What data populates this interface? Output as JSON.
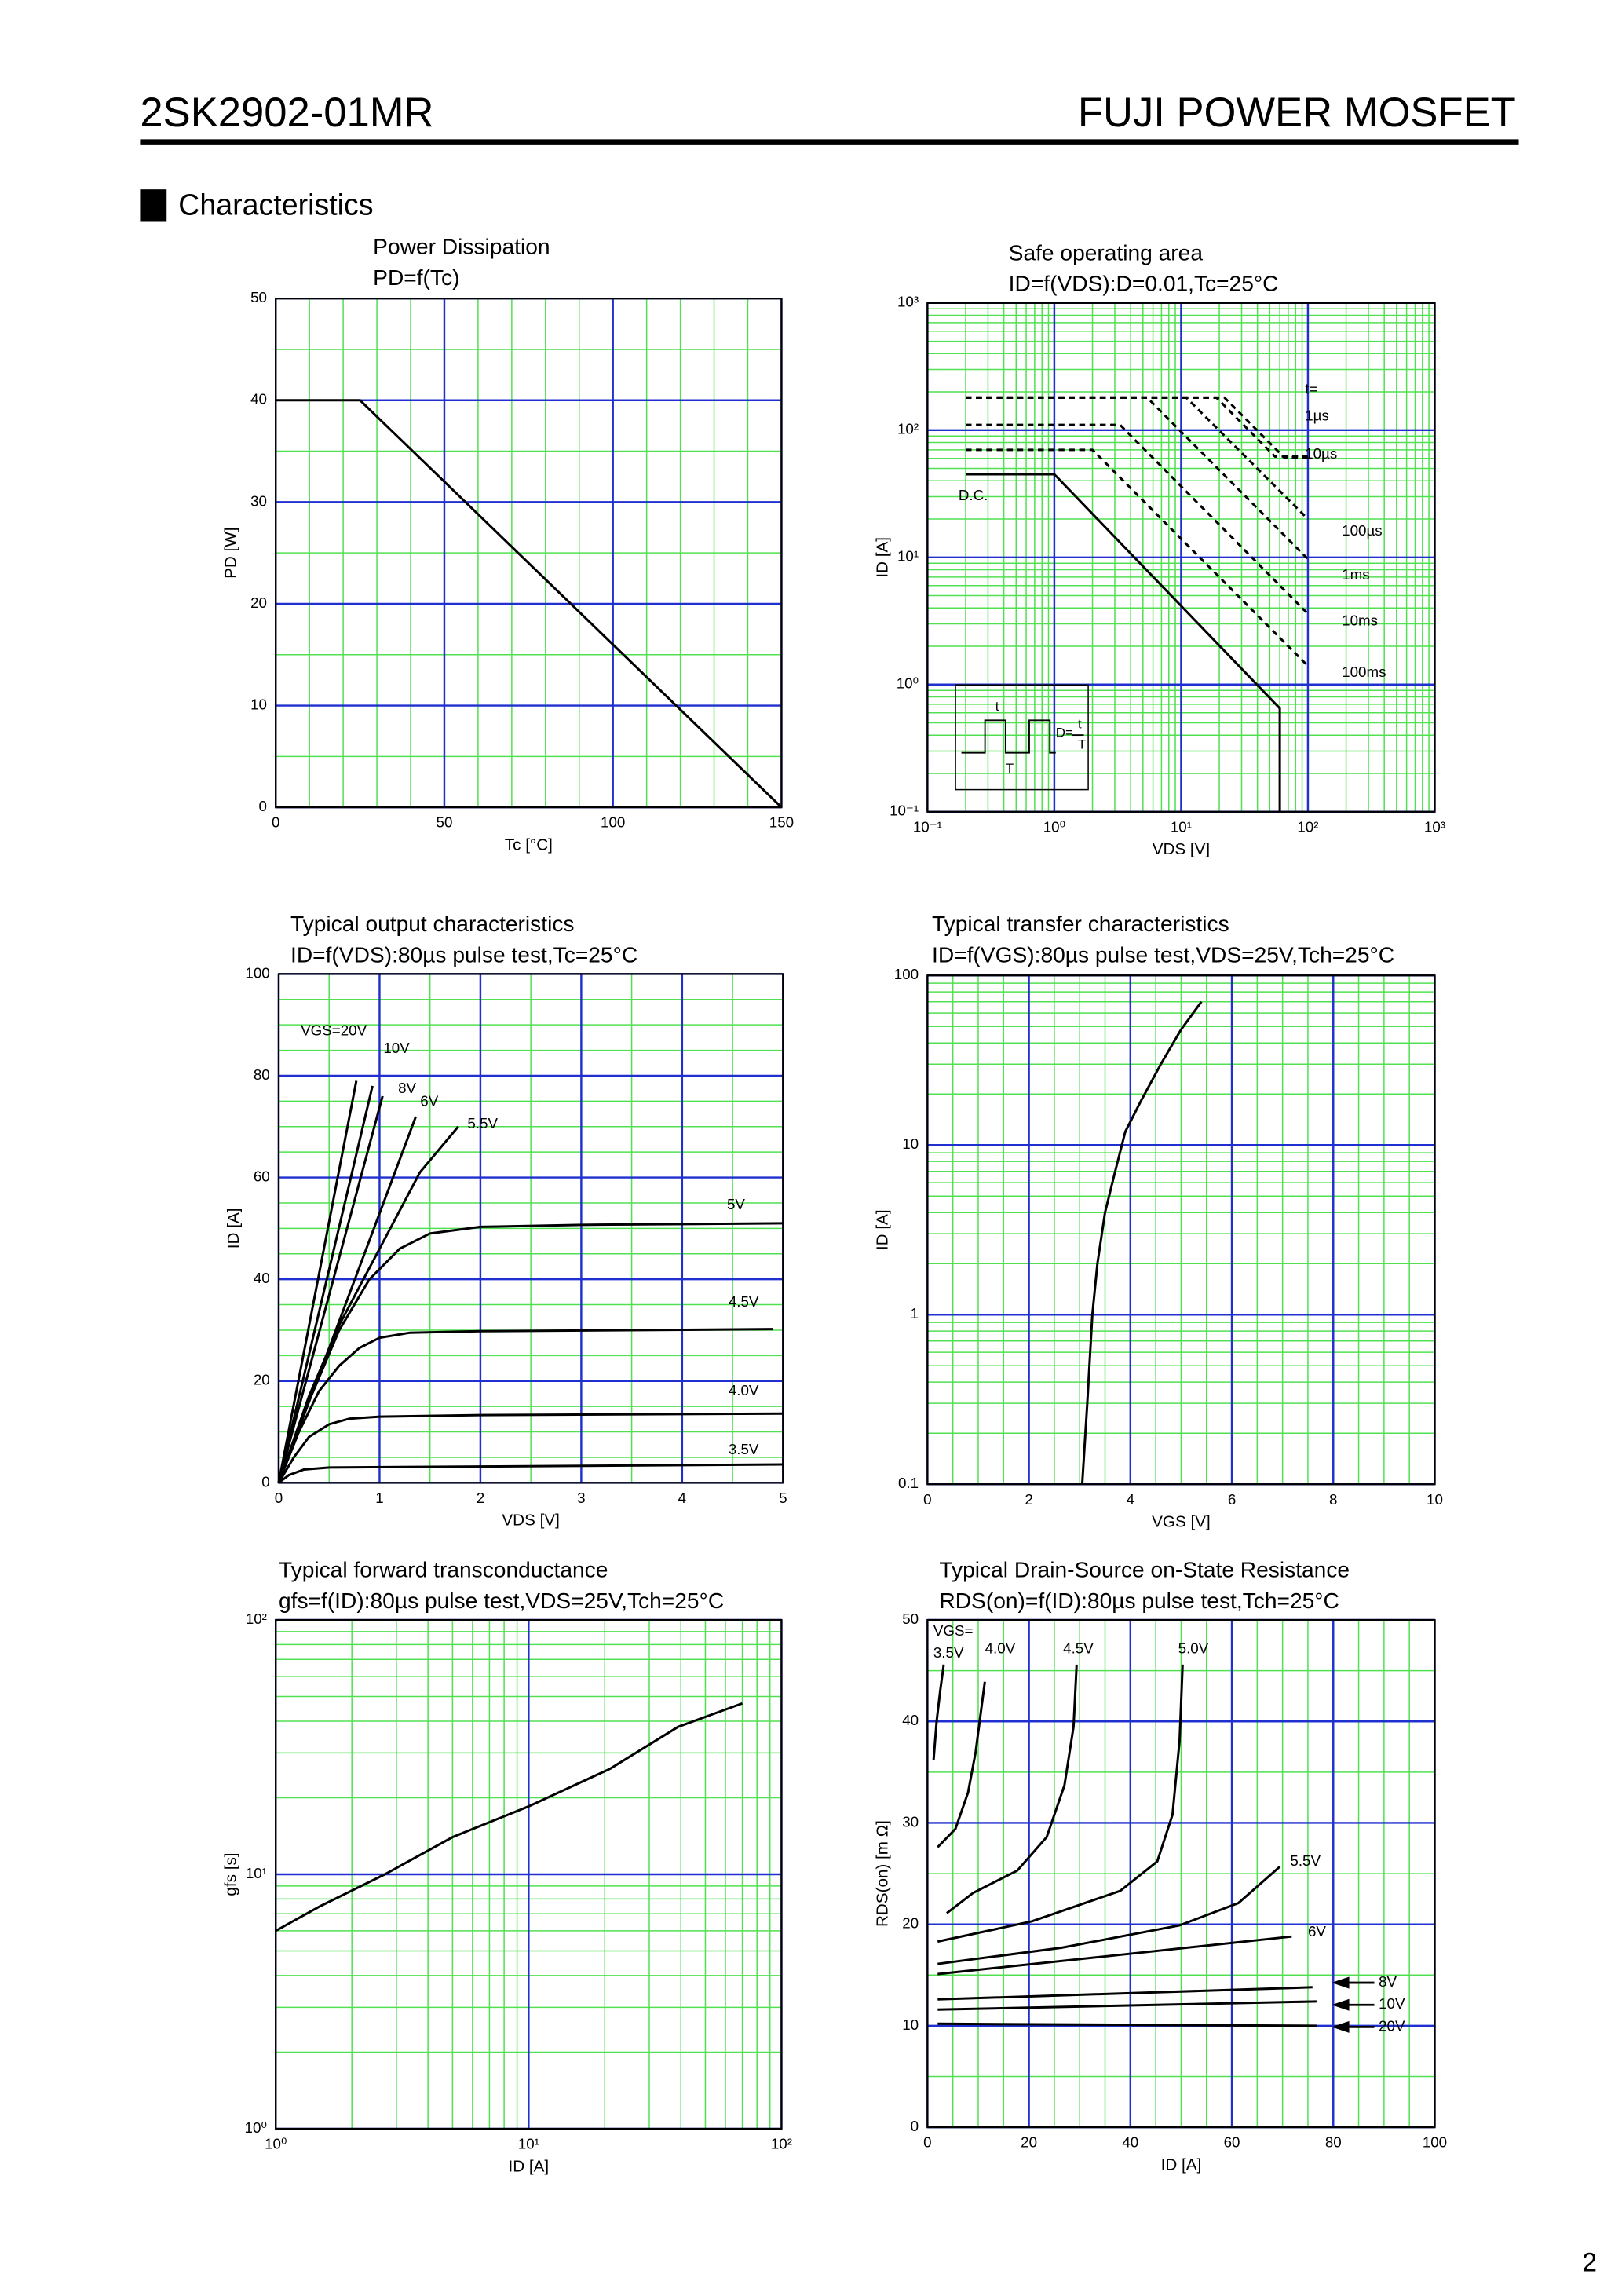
{
  "header": {
    "part": "2SK2902-01MR",
    "brand": "FUJI POWER MOSFET"
  },
  "section": "Characteristics",
  "page_number": "2",
  "chart_data": [
    {
      "type": "line",
      "title": "Power Dissipation",
      "subtitle": "PD=f(Tc)",
      "xlabel": "Tc [°C]",
      "ylabel": "PD [W]",
      "xlim": [
        0,
        150
      ],
      "ylim": [
        0,
        50
      ],
      "xticks": [
        0,
        50,
        100,
        150
      ],
      "yticks": [
        0,
        10,
        20,
        30,
        40,
        50
      ],
      "grid": true,
      "grid_color": "#2030d0",
      "minor_grid_color": "#50e050",
      "line_color": "#000000",
      "series": [
        {
          "x": [
            0,
            25,
            150
          ],
          "values": [
            40,
            40,
            0
          ],
          "style": "solid"
        }
      ]
    },
    {
      "type": "line",
      "title": "Safe operating area",
      "subtitle": "ID=f(VDS):D=0.01,Tc=25°C",
      "xlabel": "VDS [V]",
      "ylabel": "ID [A]",
      "xscale": "log",
      "yscale": "log",
      "xlim": [
        0.1,
        1000
      ],
      "ylim": [
        0.1,
        1000
      ],
      "xticks": [
        {
          "value": 0.1,
          "label": "10⁻¹"
        },
        {
          "value": 1,
          "label": "10⁰"
        },
        {
          "value": 10,
          "label": "10¹"
        },
        {
          "value": 100,
          "label": "10²"
        },
        {
          "value": 1000,
          "label": "10³"
        }
      ],
      "yticks": [
        {
          "value": 0.1,
          "label": "10⁻¹"
        },
        {
          "value": 1,
          "label": "10⁰"
        },
        {
          "value": 10,
          "label": "10¹"
        },
        {
          "value": 100,
          "label": "10²"
        },
        {
          "value": 1000,
          "label": "10³"
        }
      ],
      "grid": true,
      "grid_color": "#2030d0",
      "minor_grid_color": "#50e050",
      "line_color": "#000000",
      "series": [
        {
          "name": "D.C.",
          "x": [
            0.2,
            1,
            60,
            60
          ],
          "values": [
            45,
            45,
            0.65,
            0.1
          ],
          "style": "solid"
        },
        {
          "name": "100ms",
          "x": [
            0.2,
            2,
            100
          ],
          "values": [
            70,
            70,
            1.4
          ],
          "style": "dashed"
        },
        {
          "name": "10ms",
          "x": [
            0.2,
            3.3,
            100
          ],
          "values": [
            110,
            110,
            3.6
          ],
          "style": "dashed"
        },
        {
          "name": "1ms",
          "x": [
            0.2,
            5.4,
            100
          ],
          "values": [
            180,
            180,
            9.7
          ],
          "style": "dashed"
        },
        {
          "name": "100µs",
          "x": [
            0.2,
            11,
            100
          ],
          "values": [
            180,
            180,
            20
          ],
          "style": "dashed"
        },
        {
          "name": "10µs",
          "x": [
            0.2,
            19,
            55,
            100
          ],
          "values": [
            180,
            180,
            62,
            62
          ],
          "style": "dashed"
        },
        {
          "name": "1µs",
          "x": [
            0.2,
            22,
            65,
            100
          ],
          "values": [
            180,
            180,
            61,
            61
          ],
          "style": "dashed"
        }
      ],
      "annotations": [
        "t="
      ],
      "inset_labels": [
        "t",
        "D=",
        "t",
        "T",
        "T"
      ]
    },
    {
      "type": "line",
      "title": "Typical output characteristics",
      "subtitle": "ID=f(VDS):80µs pulse test,Tc=25°C",
      "xlabel": "VDS [V]",
      "ylabel": "ID [A]",
      "xlim": [
        0,
        5
      ],
      "ylim": [
        0,
        100
      ],
      "xticks": [
        0,
        1,
        2,
        3,
        4,
        5
      ],
      "yticks": [
        0,
        20,
        40,
        60,
        80,
        100
      ],
      "grid": true,
      "grid_color": "#2030d0",
      "minor_grid_color": "#50e050",
      "line_color": "#000000",
      "series": [
        {
          "name": "VGS=20V",
          "x": [
            0,
            0.77
          ],
          "values": [
            0,
            79
          ],
          "style": "solid"
        },
        {
          "name": "10V",
          "x": [
            0,
            0.93
          ],
          "values": [
            0,
            78
          ],
          "style": "solid"
        },
        {
          "name": "8V",
          "x": [
            0,
            1.03
          ],
          "values": [
            0,
            76
          ],
          "style": "solid"
        },
        {
          "name": "6V",
          "x": [
            0,
            1.36
          ],
          "values": [
            0,
            72
          ],
          "style": "solid"
        },
        {
          "name": "5.5V",
          "x": [
            0,
            0.3,
            0.6,
            1,
            1.4,
            1.78
          ],
          "values": [
            0,
            17,
            31,
            46,
            61,
            70
          ],
          "style": "solid"
        },
        {
          "name": "5V",
          "x": [
            0,
            0.3,
            0.6,
            0.9,
            1.2,
            1.5,
            2,
            3,
            5
          ],
          "values": [
            0,
            16,
            30,
            40,
            46,
            49,
            50.3,
            50.7,
            51
          ],
          "style": "solid"
        },
        {
          "name": "4.5V",
          "x": [
            0,
            0.2,
            0.4,
            0.6,
            0.8,
            1,
            1.3,
            2,
            4.9
          ],
          "values": [
            0,
            10,
            18,
            23,
            26.5,
            28.5,
            29.5,
            29.8,
            30.2
          ],
          "style": "solid"
        },
        {
          "name": "4.0V",
          "x": [
            0,
            0.15,
            0.3,
            0.5,
            0.7,
            1,
            2,
            5
          ],
          "values": [
            0,
            5,
            9,
            11.5,
            12.6,
            13,
            13.3,
            13.6
          ],
          "style": "solid"
        },
        {
          "name": "3.5V",
          "x": [
            0,
            0.1,
            0.25,
            0.5,
            2,
            5
          ],
          "values": [
            0,
            1.5,
            2.6,
            3,
            3.2,
            3.6
          ],
          "style": "solid"
        }
      ]
    },
    {
      "type": "line",
      "title": "Typical transfer characteristics",
      "subtitle": "ID=f(VGS):80µs pulse test,VDS=25V,Tch=25°C",
      "xlabel": "VGS [V]",
      "ylabel": "ID [A]",
      "yscale": "log",
      "xlim": [
        0,
        10
      ],
      "ylim": [
        0.1,
        100
      ],
      "xticks": [
        0,
        2,
        4,
        6,
        8,
        10
      ],
      "yticks": [
        0.1,
        1,
        10,
        100
      ],
      "grid": true,
      "grid_color": "#2030d0",
      "minor_grid_color": "#50e050",
      "line_color": "#000000",
      "series": [
        {
          "x": [
            3.05,
            3.15,
            3.25,
            3.35,
            3.5,
            3.7,
            3.9,
            4.2,
            4.6,
            5.0,
            5.4
          ],
          "values": [
            0.1,
            0.3,
            1,
            2,
            4,
            7,
            12,
            18,
            30,
            48,
            70
          ],
          "style": "solid"
        }
      ]
    },
    {
      "type": "line",
      "title": "Typical forward transconductance",
      "subtitle": "gfs=f(ID):80µs pulse test,VDS=25V,Tch=25°C",
      "xlabel": "ID [A]",
      "ylabel": "gfs [s]",
      "xscale": "log",
      "yscale": "log",
      "xlim": [
        1,
        100
      ],
      "ylim": [
        1,
        100
      ],
      "xticks": [
        {
          "value": 1,
          "label": "10⁰"
        },
        {
          "value": 10,
          "label": "10¹"
        },
        {
          "value": 100,
          "label": "10²"
        }
      ],
      "yticks": [
        {
          "value": 1,
          "label": "10⁰"
        },
        {
          "value": 10,
          "label": "10¹"
        },
        {
          "value": 100,
          "label": "10²"
        }
      ],
      "grid": true,
      "grid_color": "#2030d0",
      "minor_grid_color": "#50e050",
      "line_color": "#000000",
      "series": [
        {
          "x": [
            1,
            1.5,
            2.7,
            5,
            10,
            21,
            39,
            70
          ],
          "values": [
            6,
            7.5,
            10,
            14,
            18.5,
            26,
            38,
            47
          ],
          "style": "solid"
        }
      ]
    },
    {
      "type": "line",
      "title": "Typical Drain-Source on-State Resistance",
      "subtitle": "RDS(on)=f(ID):80µs pulse test,Tch=25°C",
      "xlabel": "ID [A]",
      "ylabel": "RDS(on) [m Ω]",
      "xlim": [
        0,
        100
      ],
      "ylim": [
        0,
        50
      ],
      "xticks": [
        0,
        20,
        40,
        60,
        80,
        100
      ],
      "yticks": [
        0,
        10,
        20,
        30,
        40,
        50
      ],
      "grid": true,
      "grid_color": "#2030d0",
      "minor_grid_color": "#50e050",
      "line_color": "#000000",
      "series": [
        {
          "name": "3.5V",
          "x": [
            1.2,
            1.8,
            2.5,
            3.2
          ],
          "values": [
            36.2,
            40,
            43,
            45.6
          ],
          "style": "solid"
        },
        {
          "name": "4.0V",
          "x": [
            2,
            5.5,
            8,
            9.5,
            11.3
          ],
          "values": [
            27.6,
            29.4,
            33,
            37,
            43.9
          ],
          "style": "solid"
        },
        {
          "name": "4.5V",
          "x": [
            3.8,
            9,
            17.7,
            23.5,
            27,
            28.8,
            29.4
          ],
          "values": [
            21.1,
            23.1,
            25.3,
            28.6,
            33.7,
            39.5,
            45.6
          ],
          "style": "solid"
        },
        {
          "name": "5.0V",
          "x": [
            2,
            20.6,
            38,
            45.3,
            48.3,
            49.7,
            50.3
          ],
          "values": [
            18.3,
            20.3,
            23.3,
            26.2,
            30.8,
            38.1,
            45.6
          ],
          "style": "solid"
        },
        {
          "name": "5.5V",
          "x": [
            2,
            26.5,
            49.7,
            61.3,
            69.5
          ],
          "values": [
            16.1,
            17.7,
            19.9,
            22.1,
            25.7
          ],
          "style": "solid"
        },
        {
          "name": "6V",
          "x": [
            2,
            38,
            71.8
          ],
          "values": [
            15.1,
            17,
            18.8
          ],
          "style": "solid"
        },
        {
          "name": "8V",
          "x": [
            2,
            75.9
          ],
          "values": [
            12.6,
            13.8
          ],
          "style": "solid"
        },
        {
          "name": "10V",
          "x": [
            2,
            76.7
          ],
          "values": [
            11.6,
            12.4
          ],
          "style": "solid"
        },
        {
          "name": "20V",
          "x": [
            2,
            76.7
          ],
          "values": [
            10.2,
            10
          ],
          "style": "solid"
        }
      ],
      "annotations": [
        "VGS="
      ]
    }
  ]
}
